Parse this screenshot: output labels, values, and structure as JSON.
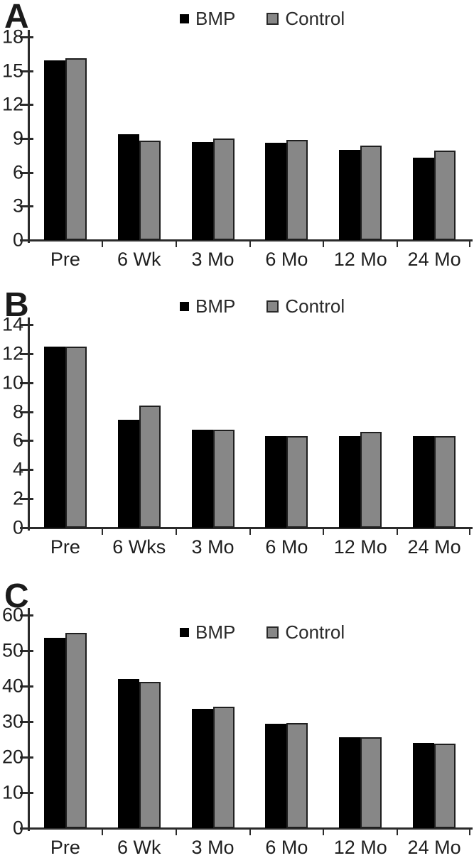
{
  "figure_title": "",
  "legend": {
    "bmp_label": "BMP",
    "control_label": "Control"
  },
  "colors": {
    "bmp": "#000000",
    "control": "#878787",
    "axis": "#2b2b2b",
    "background": "#ffffff"
  },
  "chart_data": [
    {
      "type": "bar",
      "panel": "A",
      "title": "",
      "xlabel": "",
      "ylabel": "",
      "categories": [
        "Pre",
        "6 Wk",
        "3 Mo",
        "6 Mo",
        "12 Mo",
        "24 Mo"
      ],
      "series": [
        {
          "name": "BMP",
          "color": "#000000",
          "values": [
            15.9,
            9.4,
            8.7,
            8.6,
            8.0,
            7.3
          ]
        },
        {
          "name": "Control",
          "color": "#878787",
          "values": [
            16.1,
            8.8,
            9.0,
            8.9,
            8.4,
            7.9
          ]
        }
      ],
      "ylim": [
        0,
        18
      ],
      "yticks": [
        0,
        3,
        6,
        9,
        12,
        15,
        18
      ],
      "grid": false,
      "legend_position": "top-center"
    },
    {
      "type": "bar",
      "panel": "B",
      "title": "",
      "xlabel": "",
      "ylabel": "",
      "categories": [
        "Pre",
        "6 Wks",
        "3 Mo",
        "6 Mo",
        "12 Mo",
        "24 Mo"
      ],
      "series": [
        {
          "name": "BMP",
          "color": "#000000",
          "values": [
            12.5,
            7.45,
            6.75,
            6.3,
            6.3,
            6.3
          ]
        },
        {
          "name": "Control",
          "color": "#878787",
          "values": [
            12.5,
            8.4,
            6.75,
            6.3,
            6.6,
            6.3
          ]
        }
      ],
      "ylim": [
        0,
        14
      ],
      "yticks": [
        0,
        2,
        4,
        6,
        8,
        10,
        12,
        14
      ],
      "grid": false,
      "legend_position": "top-center"
    },
    {
      "type": "bar",
      "panel": "C",
      "title": "",
      "xlabel": "",
      "ylabel": "",
      "categories": [
        "Pre",
        "6 Wk",
        "3 Mo",
        "6 Mo",
        "12 Mo",
        "24 Mo"
      ],
      "series": [
        {
          "name": "BMP",
          "color": "#000000",
          "values": [
            53.7,
            42.0,
            33.6,
            29.4,
            25.7,
            24.0
          ]
        },
        {
          "name": "Control",
          "color": "#878787",
          "values": [
            55.0,
            41.3,
            34.2,
            29.7,
            25.6,
            23.9
          ]
        }
      ],
      "ylim": [
        0,
        60
      ],
      "yticks": [
        0,
        10,
        20,
        30,
        40,
        50,
        60
      ],
      "grid": false,
      "legend_position": "inside-top-center"
    }
  ]
}
